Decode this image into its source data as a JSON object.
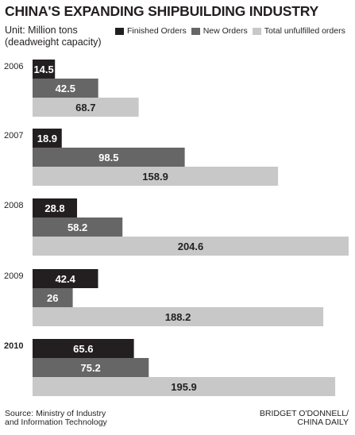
{
  "title": "CHINA'S EXPANDING SHIPBUILDING INDUSTRY",
  "unit": {
    "line1": "Unit: Million tons",
    "line2": "(deadweight capacity)"
  },
  "colors": {
    "finished": "#231f20",
    "new": "#666666",
    "total": "#c8c8c8"
  },
  "source": {
    "line1": "Source: Ministry of Industry",
    "line2": "and Information Technology"
  },
  "credit": {
    "line1": "BRIDGET O'DONNELL/",
    "line2": "CHINA DAILY"
  },
  "chart_data": {
    "type": "bar",
    "orientation": "horizontal",
    "categories": [
      "2006",
      "2007",
      "2008",
      "2009",
      "2010"
    ],
    "series": [
      {
        "name": "Finished Orders",
        "values": [
          14.5,
          18.9,
          28.8,
          42.4,
          65.6
        ]
      },
      {
        "name": "New Orders",
        "values": [
          42.5,
          98.5,
          58.2,
          26,
          75.2
        ]
      },
      {
        "name": "Total unfulfilled orders",
        "values": [
          68.7,
          158.9,
          204.6,
          188.2,
          195.9
        ]
      }
    ],
    "xlim": [
      0,
      204.6
    ],
    "grid": false,
    "legend": "top",
    "data_labels": true
  }
}
